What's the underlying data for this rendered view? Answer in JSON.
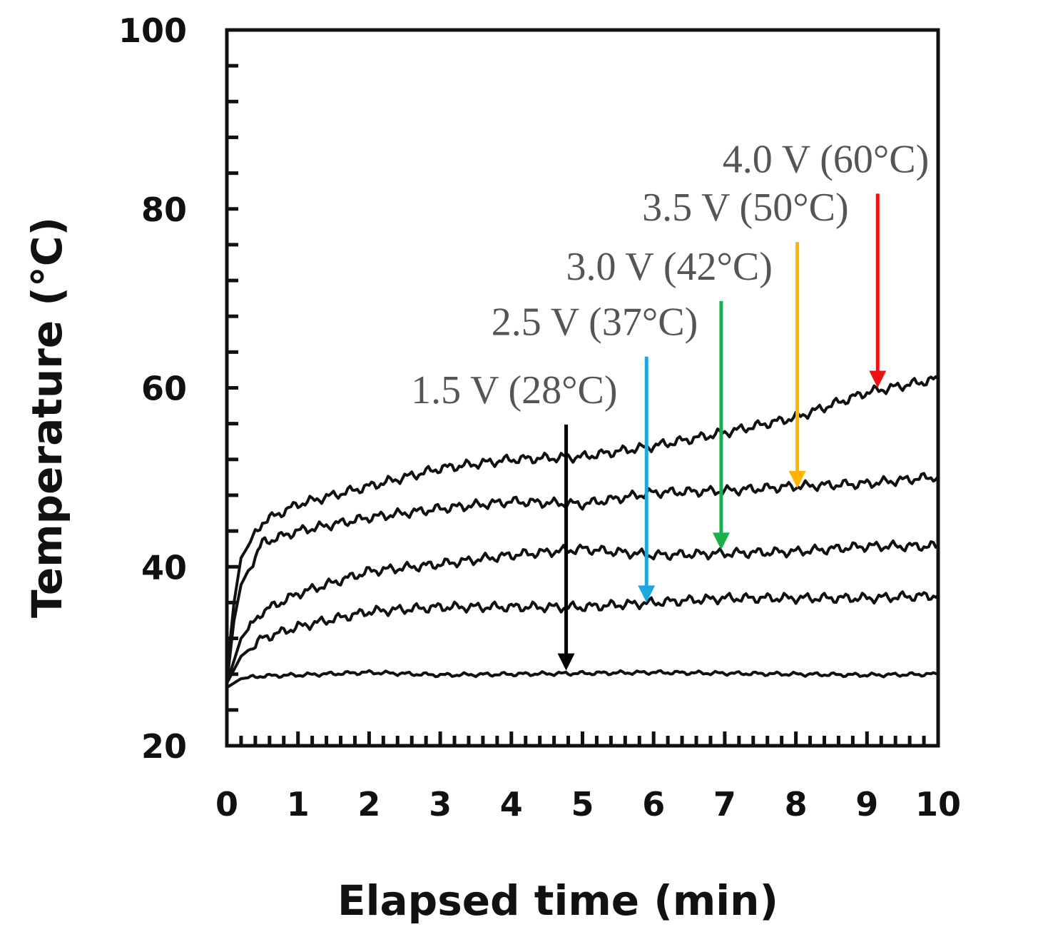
{
  "chart_data": {
    "type": "line",
    "title": "",
    "xlabel": "Elapsed time (min)",
    "ylabel": "Temperature (°C)",
    "xlim": [
      0,
      10
    ],
    "ylim": [
      20,
      100
    ],
    "xticks": [
      0,
      1,
      2,
      3,
      4,
      5,
      6,
      7,
      8,
      9,
      10
    ],
    "yticks": [
      20,
      40,
      60,
      80,
      100
    ],
    "xtick_labels": [
      "0",
      "1",
      "2",
      "3",
      "4",
      "5",
      "6",
      "7",
      "8",
      "9",
      "10"
    ],
    "ytick_labels": [
      "20",
      "40",
      "60",
      "80",
      "100"
    ],
    "grid": false,
    "line_color": "#111111",
    "series": [
      {
        "x": [
          0,
          0.2,
          0.5,
          1,
          2,
          3,
          4,
          5,
          6,
          7,
          8,
          9,
          10
        ],
        "y": [
          26.5,
          27.5,
          27.8,
          27.9,
          28.2,
          27.9,
          28,
          28.1,
          28.2,
          28.1,
          28,
          27.9,
          28
        ]
      },
      {
        "x": [
          0,
          0.2,
          0.5,
          1,
          2,
          3,
          4,
          5,
          6,
          7,
          8,
          9,
          10
        ],
        "y": [
          27,
          30,
          32,
          33.3,
          35,
          35.5,
          35.5,
          35.5,
          36,
          36.5,
          36.5,
          36.5,
          36.8
        ]
      },
      {
        "x": [
          0,
          0.2,
          0.5,
          1,
          2,
          3,
          4,
          5,
          6,
          7,
          8,
          9,
          10
        ],
        "y": [
          27,
          32,
          35,
          37,
          39.5,
          40.3,
          41.3,
          42,
          41.3,
          41.5,
          41.7,
          42.3,
          42.3
        ]
      },
      {
        "x": [
          0,
          0.1,
          0.2,
          0.5,
          1,
          2,
          3,
          4,
          5,
          6,
          7,
          8,
          9,
          10
        ],
        "y": [
          27,
          34,
          38,
          42.7,
          44,
          45.5,
          46.5,
          47.3,
          47,
          48.3,
          48.5,
          49,
          49.3,
          50.1
        ]
      },
      {
        "x": [
          0,
          0.1,
          0.2,
          0.5,
          1,
          2,
          3,
          4,
          5,
          6,
          7,
          8,
          9,
          10
        ],
        "y": [
          28,
          36,
          41,
          45,
          47,
          49,
          51,
          52,
          52.3,
          53.5,
          55,
          56.7,
          59.5,
          61
        ]
      }
    ],
    "annotations": [
      {
        "text": "1.5 V (28°C)",
        "color": "#000000",
        "arrow_x": 4.77,
        "arrow_from": 55.9,
        "arrow_to": 28.4
      },
      {
        "text": "2.5 V (37°C)",
        "color": "#1ea8e0",
        "arrow_x": 5.9,
        "arrow_from": 63.5,
        "arrow_to": 36
      },
      {
        "text": "3.0 V (42°C)",
        "color": "#17b04a",
        "arrow_x": 6.95,
        "arrow_from": 69.7,
        "arrow_to": 41.9
      },
      {
        "text": "3.5 V (50°C)",
        "color": "#ffb400",
        "arrow_x": 8.02,
        "arrow_from": 76.3,
        "arrow_to": 48.8
      },
      {
        "text": "4.0 V (60°C)",
        "color": "#ee1111",
        "arrow_x": 9.15,
        "arrow_from": 81.7,
        "arrow_to": 60
      }
    ]
  }
}
